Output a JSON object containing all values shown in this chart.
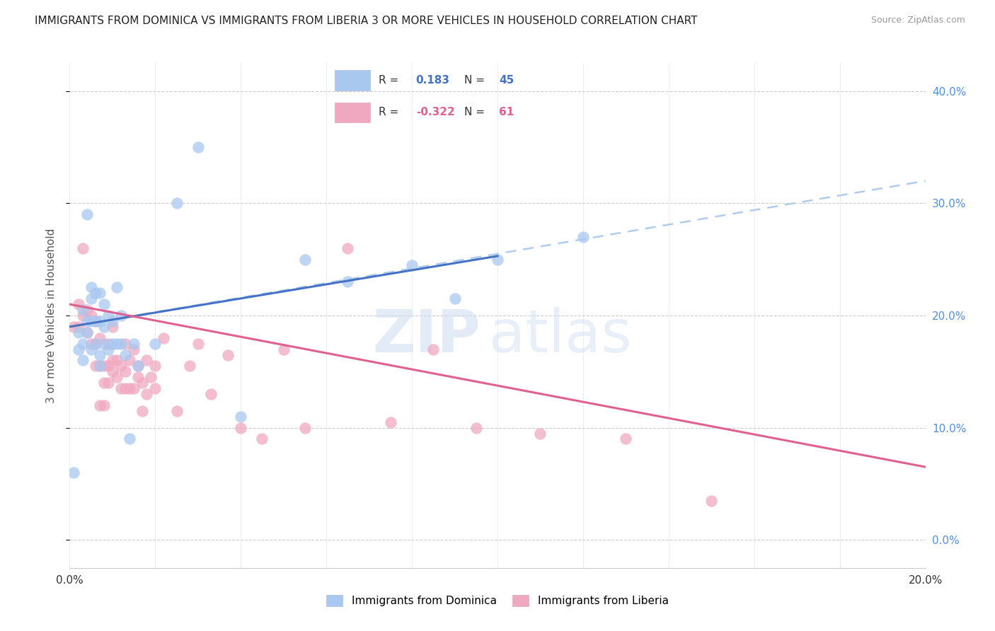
{
  "title": "IMMIGRANTS FROM DOMINICA VS IMMIGRANTS FROM LIBERIA 3 OR MORE VEHICLES IN HOUSEHOLD CORRELATION CHART",
  "source": "Source: ZipAtlas.com",
  "ylabel": "3 or more Vehicles in Household",
  "xlim": [
    0.0,
    0.2
  ],
  "ylim": [
    -0.025,
    0.425
  ],
  "yticks": [
    0.0,
    0.1,
    0.2,
    0.3,
    0.4
  ],
  "r_dominica": 0.183,
  "n_dominica": 45,
  "r_liberia": -0.322,
  "n_liberia": 61,
  "legend_labels": [
    "Immigrants from Dominica",
    "Immigrants from Liberia"
  ],
  "color_dominica": "#a8c8f0",
  "color_liberia": "#f0a8c0",
  "line_color_dominica": "#4472c4",
  "line_color_liberia": "#e06090",
  "watermark_zip": "ZIP",
  "watermark_atlas": "atlas",
  "dashed_line_color": "#b0ccee",
  "grid_color": "#cccccc",
  "dominica_x": [
    0.001,
    0.002,
    0.002,
    0.003,
    0.003,
    0.003,
    0.004,
    0.004,
    0.004,
    0.005,
    0.005,
    0.005,
    0.005,
    0.006,
    0.006,
    0.006,
    0.007,
    0.007,
    0.007,
    0.007,
    0.008,
    0.008,
    0.008,
    0.009,
    0.009,
    0.01,
    0.01,
    0.011,
    0.011,
    0.012,
    0.012,
    0.013,
    0.014,
    0.015,
    0.016,
    0.02,
    0.025,
    0.03,
    0.04,
    0.055,
    0.065,
    0.08,
    0.09,
    0.1,
    0.12
  ],
  "dominica_y": [
    0.06,
    0.17,
    0.185,
    0.16,
    0.175,
    0.205,
    0.185,
    0.195,
    0.29,
    0.17,
    0.195,
    0.215,
    0.225,
    0.175,
    0.195,
    0.22,
    0.155,
    0.165,
    0.195,
    0.22,
    0.175,
    0.19,
    0.21,
    0.17,
    0.2,
    0.175,
    0.195,
    0.175,
    0.225,
    0.175,
    0.2,
    0.165,
    0.09,
    0.175,
    0.155,
    0.175,
    0.3,
    0.35,
    0.11,
    0.25,
    0.23,
    0.245,
    0.215,
    0.25,
    0.27
  ],
  "liberia_x": [
    0.001,
    0.002,
    0.002,
    0.003,
    0.003,
    0.004,
    0.004,
    0.005,
    0.005,
    0.006,
    0.006,
    0.006,
    0.007,
    0.007,
    0.007,
    0.008,
    0.008,
    0.008,
    0.009,
    0.009,
    0.009,
    0.01,
    0.01,
    0.01,
    0.011,
    0.011,
    0.012,
    0.012,
    0.013,
    0.013,
    0.013,
    0.014,
    0.014,
    0.015,
    0.015,
    0.016,
    0.016,
    0.017,
    0.017,
    0.018,
    0.018,
    0.019,
    0.02,
    0.02,
    0.022,
    0.025,
    0.028,
    0.03,
    0.033,
    0.037,
    0.04,
    0.045,
    0.05,
    0.055,
    0.065,
    0.075,
    0.085,
    0.095,
    0.11,
    0.13,
    0.15
  ],
  "liberia_y": [
    0.19,
    0.19,
    0.21,
    0.2,
    0.26,
    0.185,
    0.205,
    0.175,
    0.2,
    0.155,
    0.175,
    0.195,
    0.12,
    0.155,
    0.18,
    0.12,
    0.14,
    0.155,
    0.14,
    0.155,
    0.175,
    0.15,
    0.16,
    0.19,
    0.145,
    0.16,
    0.135,
    0.155,
    0.135,
    0.15,
    0.175,
    0.135,
    0.16,
    0.135,
    0.17,
    0.145,
    0.155,
    0.115,
    0.14,
    0.13,
    0.16,
    0.145,
    0.155,
    0.135,
    0.18,
    0.115,
    0.155,
    0.175,
    0.13,
    0.165,
    0.1,
    0.09,
    0.17,
    0.1,
    0.26,
    0.105,
    0.17,
    0.1,
    0.095,
    0.09,
    0.035
  ],
  "dom_line_x0": 0.0,
  "dom_line_y0": 0.19,
  "dom_line_x1": 0.1,
  "dom_line_y1": 0.253,
  "lib_line_x0": 0.0,
  "lib_line_y0": 0.21,
  "lib_line_x1": 0.2,
  "lib_line_y1": 0.065,
  "dash_line_x0": 0.0,
  "dash_line_y0": 0.19,
  "dash_line_x1": 0.2,
  "dash_line_y1": 0.32
}
